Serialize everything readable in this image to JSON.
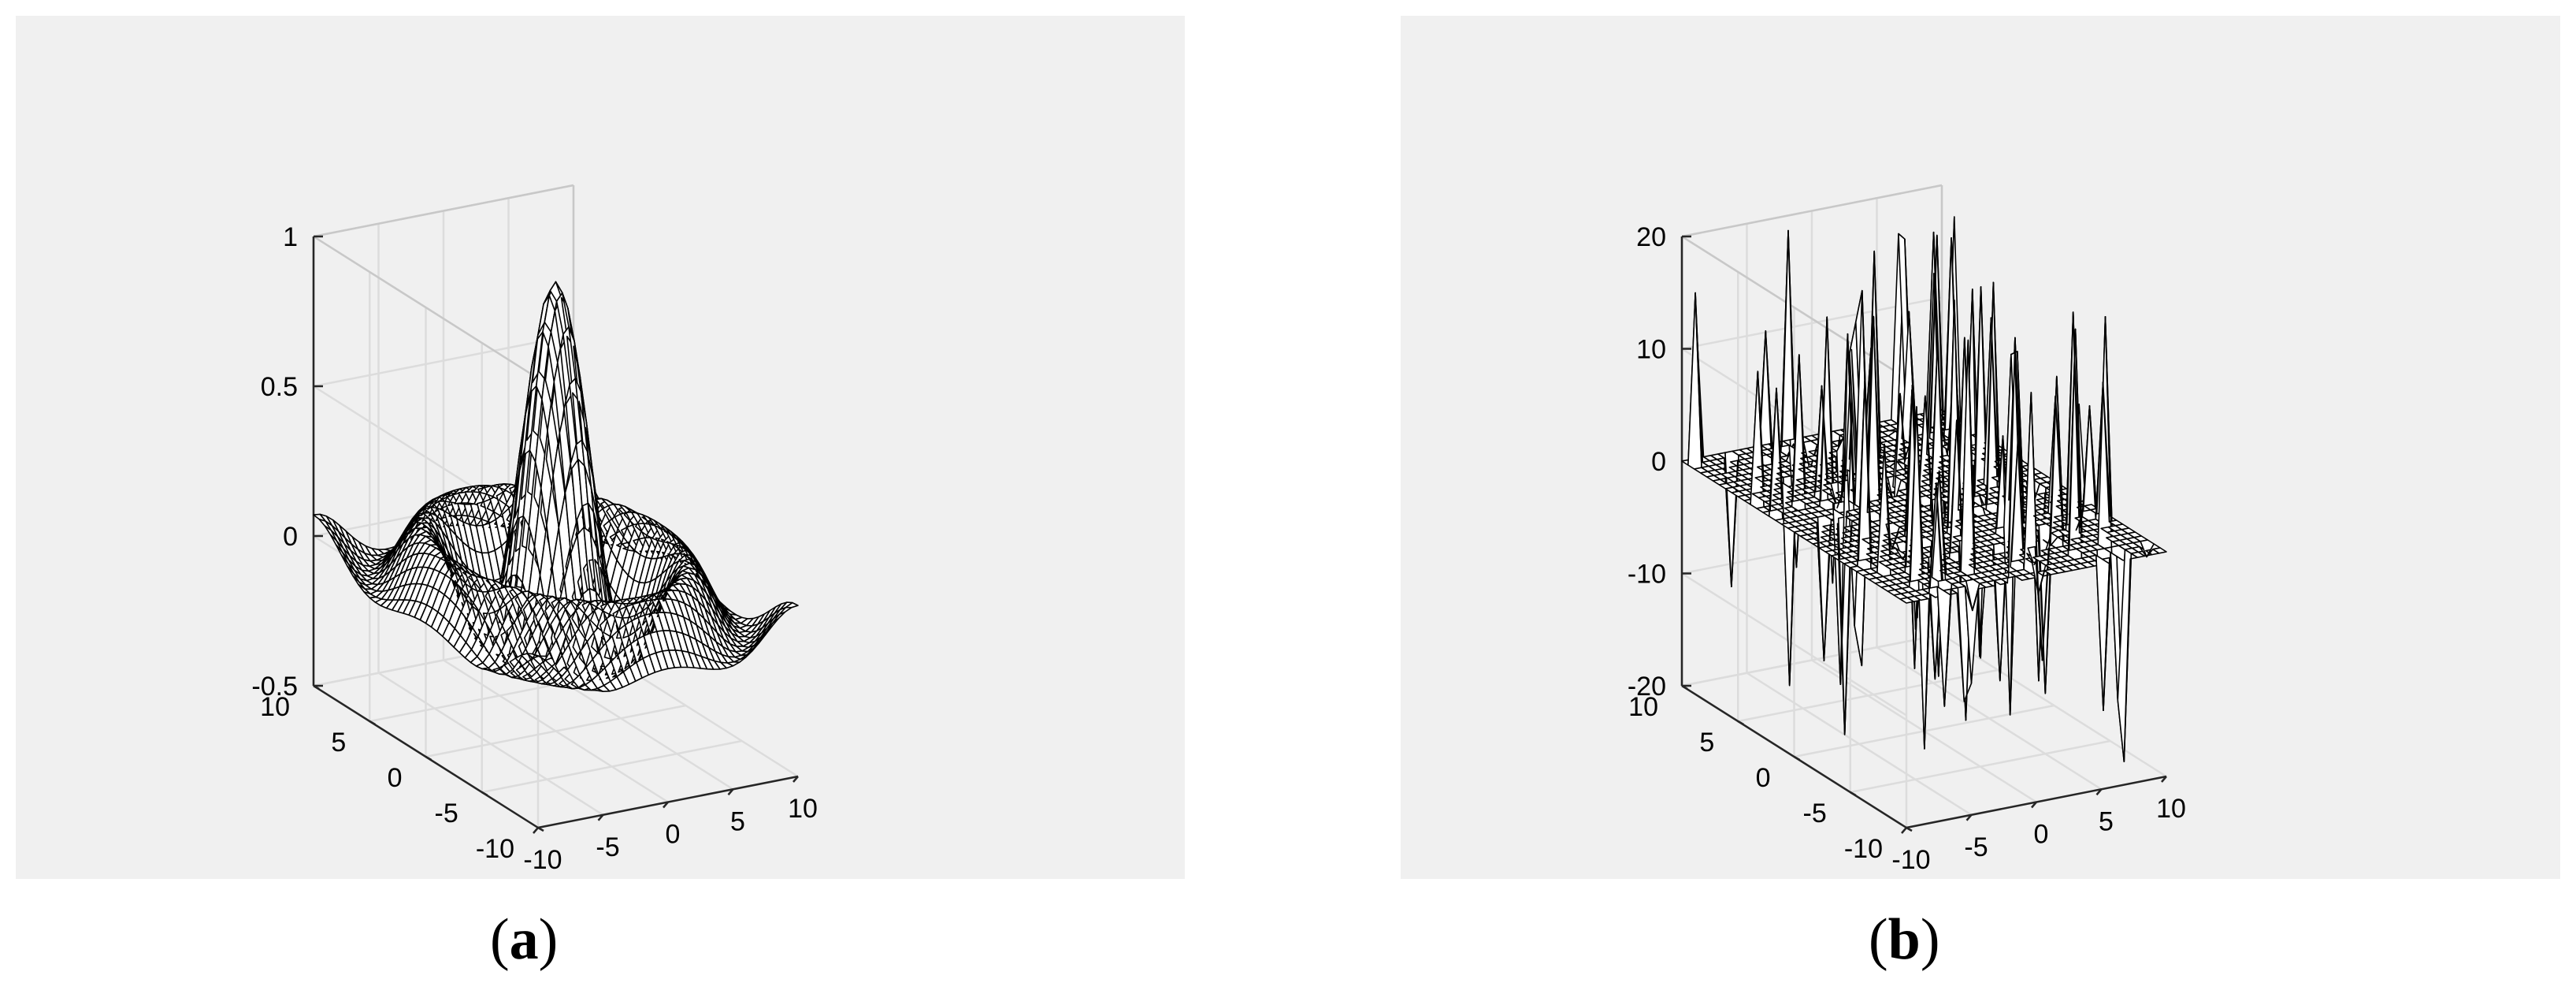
{
  "chart_data": [
    {
      "type": "surface",
      "panel": "a",
      "caption": "a",
      "surface_function": "sin(r)/r, r = sqrt(x^2 + y^2)",
      "grid": true,
      "xlim": [
        -10,
        10
      ],
      "ylim": [
        -10,
        10
      ],
      "zlim": [
        -0.5,
        1
      ],
      "x_ticks": [
        "-10",
        "-5",
        "0",
        "5",
        "10"
      ],
      "y_ticks": [
        "-10",
        "-5",
        "0",
        "5",
        "10"
      ],
      "z_ticks": [
        "-0.5",
        "0",
        "0.5",
        "1"
      ]
    },
    {
      "type": "surface",
      "panel": "b",
      "caption": "b",
      "surface_function": "random spikes on a flat plane",
      "grid": true,
      "xlim": [
        -10,
        10
      ],
      "ylim": [
        -10,
        10
      ],
      "zlim": [
        -20,
        20
      ],
      "x_ticks": [
        "-10",
        "-5",
        "0",
        "5",
        "10"
      ],
      "y_ticks": [
        "-10",
        "-5",
        "0",
        "5",
        "10"
      ],
      "z_ticks": [
        "-20",
        "-10",
        "0",
        "10",
        "20"
      ]
    }
  ]
}
